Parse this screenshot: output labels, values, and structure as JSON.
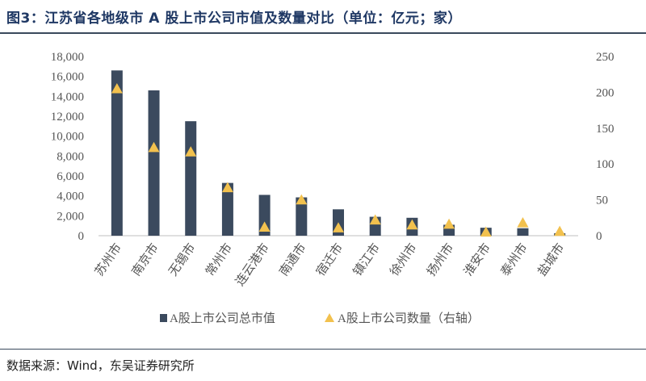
{
  "header": {
    "title": "图3：江苏省各地级市 A 股上市公司市值及数量对比（单位：亿元；家）"
  },
  "footer": {
    "source": "数据来源：Wind，东吴证券研究所"
  },
  "colors": {
    "bar": "#3b4a5e",
    "marker": "#f2c14e",
    "axis": "#bfbfbf"
  },
  "chart_data": {
    "type": "bar",
    "categories": [
      "苏州市",
      "南京市",
      "无锡市",
      "常州市",
      "连云港市",
      "南通市",
      "宿迁市",
      "镇江市",
      "徐州市",
      "扬州市",
      "淮安市",
      "泰州市",
      "盐城市"
    ],
    "series": [
      {
        "name": "A股上市公司总市值",
        "type": "bar",
        "axis": "left",
        "values": [
          16600,
          14600,
          11500,
          5300,
          4100,
          3850,
          2650,
          1900,
          1800,
          1100,
          800,
          750,
          250
        ]
      },
      {
        "name": "A股上市公司数量（右轴）",
        "type": "scatter",
        "marker": "triangle",
        "axis": "right",
        "values": [
          205,
          123,
          117,
          67,
          12,
          50,
          11,
          22,
          15,
          16,
          5,
          18,
          6
        ]
      }
    ],
    "y_left": {
      "lim": [
        0,
        18000
      ],
      "ticks": [
        "0",
        "2,000",
        "4,000",
        "6,000",
        "8,000",
        "10,000",
        "12,000",
        "14,000",
        "16,000",
        "18,000"
      ]
    },
    "y_right": {
      "lim": [
        0,
        250
      ],
      "ticks": [
        "0",
        "50",
        "100",
        "150",
        "200",
        "250"
      ]
    },
    "grid": false,
    "legend_position": "bottom"
  }
}
